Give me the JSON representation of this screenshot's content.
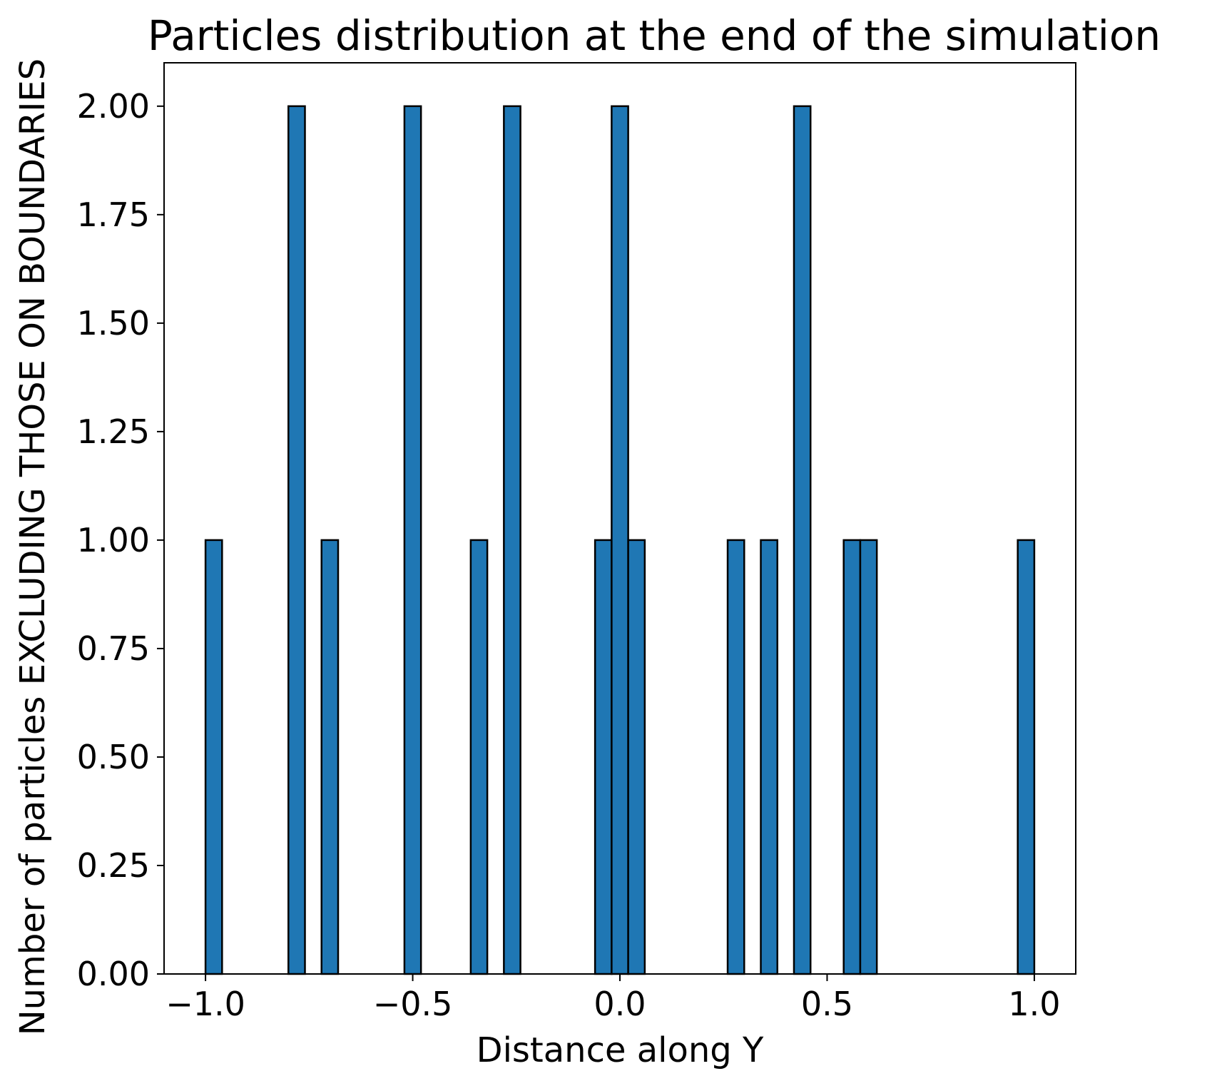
{
  "chart_data": {
    "type": "bar",
    "title": "Particles distribution at the end of the simulation",
    "xlabel": "Distance along Y",
    "ylabel": "Number of particles EXCLUDING THOSE ON BOUNDARIES",
    "xlim": [
      -1.1,
      1.1
    ],
    "ylim": [
      0,
      2.1
    ],
    "bin_width": 0.04,
    "x_ticks": [
      "−1.0",
      "−0.5",
      "0.0",
      "0.5",
      "1.0"
    ],
    "x_tick_values": [
      -1.0,
      -0.5,
      0.0,
      0.5,
      1.0
    ],
    "y_ticks": [
      "0.00",
      "0.25",
      "0.50",
      "0.75",
      "1.00",
      "1.25",
      "1.50",
      "1.75",
      "2.00"
    ],
    "y_tick_values": [
      0,
      0.25,
      0.5,
      0.75,
      1.0,
      1.25,
      1.5,
      1.75,
      2.0
    ],
    "bars": [
      {
        "x_start": -1.0,
        "value": 1
      },
      {
        "x_start": -0.8,
        "value": 2
      },
      {
        "x_start": -0.72,
        "value": 1
      },
      {
        "x_start": -0.52,
        "value": 2
      },
      {
        "x_start": -0.36,
        "value": 1
      },
      {
        "x_start": -0.28,
        "value": 2
      },
      {
        "x_start": -0.06,
        "value": 1
      },
      {
        "x_start": -0.02,
        "value": 2
      },
      {
        "x_start": 0.02,
        "value": 1
      },
      {
        "x_start": 0.26,
        "value": 1
      },
      {
        "x_start": 0.34,
        "value": 1
      },
      {
        "x_start": 0.42,
        "value": 2
      },
      {
        "x_start": 0.54,
        "value": 1
      },
      {
        "x_start": 0.58,
        "value": 1
      },
      {
        "x_start": 0.96,
        "value": 1
      }
    ],
    "bar_color": "#1f77b4",
    "edge_color": "#000000",
    "grid": false,
    "legend": "none"
  }
}
